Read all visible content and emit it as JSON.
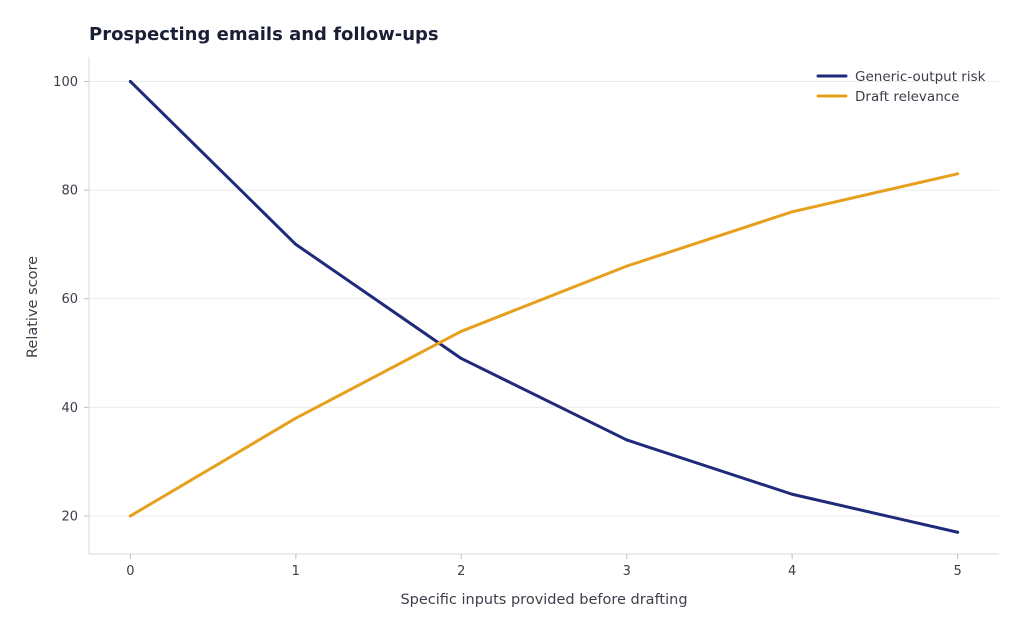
{
  "chart_data": {
    "type": "line",
    "title": "Prospecting emails and follow-ups",
    "xlabel": "Specific inputs provided before drafting",
    "ylabel": "Relative score",
    "x": [
      0,
      1,
      2,
      3,
      4,
      5
    ],
    "xlim": [
      -0.25,
      5.25
    ],
    "ylim": [
      13,
      104.5
    ],
    "xticks": [
      0,
      1,
      2,
      3,
      4,
      5
    ],
    "yticks": [
      20,
      40,
      60,
      80,
      100
    ],
    "grid": "horizontal",
    "legend_position": "top-right",
    "series": [
      {
        "name": "Generic-output risk",
        "color": "#1f2a7a",
        "values": [
          100,
          70,
          49,
          34,
          24,
          17
        ]
      },
      {
        "name": "Draft relevance",
        "color": "#e6a01e",
        "values": [
          20,
          38,
          54,
          66,
          76,
          83
        ]
      }
    ]
  }
}
